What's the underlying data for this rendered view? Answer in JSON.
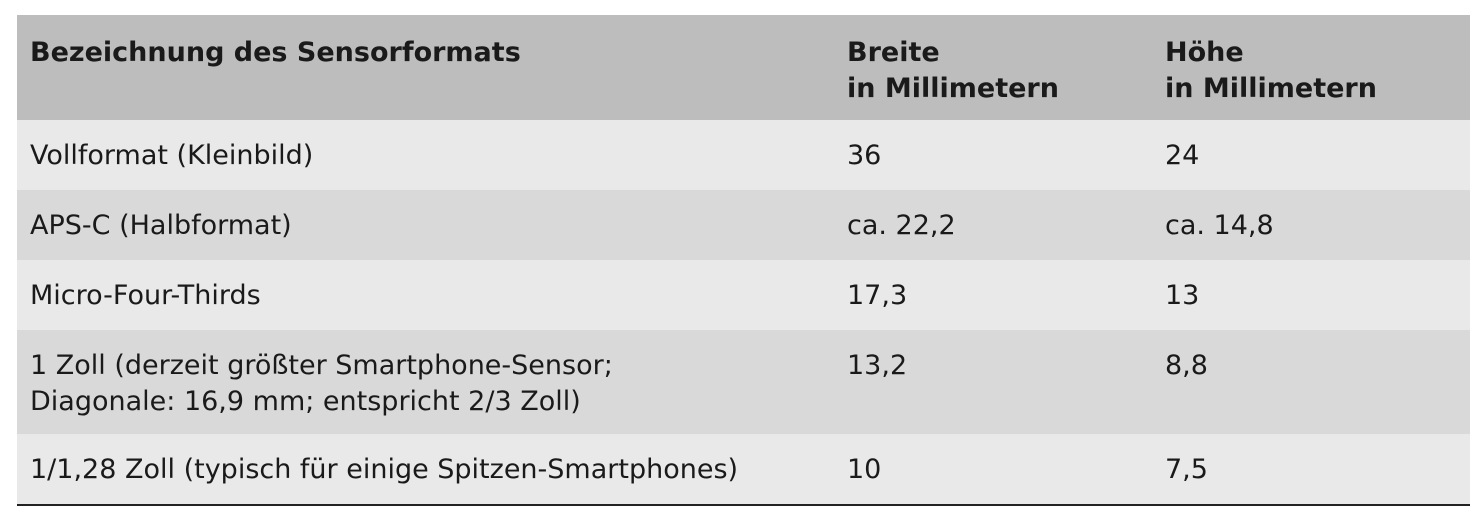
{
  "table": {
    "header": [
      [
        "Bezeichnung des Sensorformats"
      ],
      [
        "Breite",
        "in Millimetern"
      ],
      [
        "Höhe",
        "in Millimetern"
      ]
    ],
    "rows": [
      [
        [
          "Vollformat (Kleinbild)"
        ],
        [
          "36"
        ],
        [
          "24"
        ]
      ],
      [
        [
          "APS-C (Halbformat)"
        ],
        [
          "ca. 22,2"
        ],
        [
          "ca. 14,8"
        ]
      ],
      [
        [
          "Micro-Four-Thirds"
        ],
        [
          "17,3"
        ],
        [
          "13"
        ]
      ],
      [
        [
          "1 Zoll (derzeit größter Smartphone-Sensor;",
          "Diagonale: 16,9 mm; entspricht 2/3 Zoll)"
        ],
        [
          "13,2"
        ],
        [
          "8,8"
        ]
      ],
      [
        [
          "1/1,28 Zoll (typisch für einige Spitzen-Smartphones)"
        ],
        [
          "10"
        ],
        [
          "7,5"
        ]
      ]
    ]
  }
}
